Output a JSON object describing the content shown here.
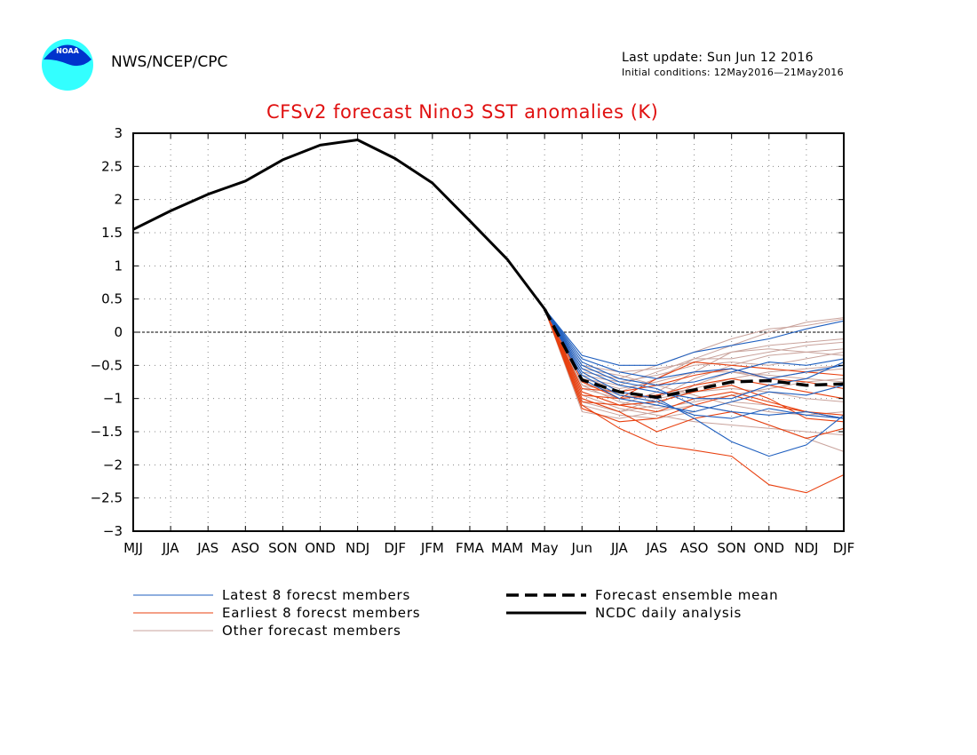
{
  "header": {
    "organization": "NWS/NCEP/CPC",
    "last_update": "Last update: Sun Jun 12 2016",
    "initial_conditions": "Initial conditions: 12May2016—21May2016",
    "logo_text": "NOAA"
  },
  "colors": {
    "title": "#e01010",
    "latest": "#1f5fbf",
    "earliest": "#e8400f",
    "other": "#c9a39c",
    "observed": "#000000",
    "mean": "#000000"
  },
  "chart_data": {
    "type": "line",
    "title": "CFSv2 forecast Nino3 SST anomalies (K)",
    "categories": [
      "MJJ",
      "JJA",
      "JAS",
      "ASO",
      "SON",
      "OND",
      "NDJ",
      "DJF",
      "JFM",
      "FMA",
      "MAM",
      "May",
      "Jun",
      "JJA",
      "JAS",
      "ASO",
      "SON",
      "OND",
      "NDJ",
      "DJF"
    ],
    "ylim": [
      -3,
      3
    ],
    "yticks": [
      "3",
      "2.5",
      "2",
      "1.5",
      "1",
      "0.5",
      "0",
      "−0.5",
      "−1",
      "−1.5",
      "−2",
      "−2.5",
      "−3"
    ],
    "grid": true,
    "zero_line": true,
    "observed": {
      "name": "NCDC daily analysis",
      "values": [
        1.55,
        1.83,
        2.08,
        2.28,
        2.6,
        2.82,
        2.9,
        2.62,
        2.25,
        1.68,
        1.1,
        0.35
      ]
    },
    "ensemble_mean": {
      "name": "Forecast ensemble mean",
      "start_index": 11,
      "values": [
        0.35,
        -0.72,
        -0.9,
        -0.98,
        -0.87,
        -0.75,
        -0.73,
        -0.8,
        -0.78
      ]
    },
    "latest_members": {
      "name": "Latest 8 forecst members",
      "start_index": 11,
      "series": [
        [
          0.35,
          -0.35,
          -0.5,
          -0.5,
          -0.3,
          -0.2,
          -0.1,
          0.05,
          0.17
        ],
        [
          0.35,
          -0.45,
          -0.7,
          -0.8,
          -0.75,
          -0.6,
          -0.45,
          -0.5,
          -0.4
        ],
        [
          0.35,
          -0.55,
          -0.8,
          -0.9,
          -1.0,
          -1.0,
          -0.8,
          -0.7,
          -0.45
        ],
        [
          0.35,
          -0.6,
          -0.9,
          -1.0,
          -1.3,
          -1.65,
          -1.87,
          -1.7,
          -1.25
        ],
        [
          0.35,
          -0.7,
          -1.0,
          -1.1,
          -1.2,
          -1.05,
          -0.9,
          -0.95,
          -0.8
        ],
        [
          0.35,
          -0.5,
          -0.75,
          -0.85,
          -1.1,
          -1.2,
          -1.25,
          -1.2,
          -1.3
        ],
        [
          0.35,
          -0.65,
          -0.95,
          -1.05,
          -1.25,
          -1.3,
          -1.15,
          -1.25,
          -1.3
        ],
        [
          0.35,
          -0.4,
          -0.6,
          -0.7,
          -0.6,
          -0.55,
          -0.7,
          -0.6,
          -0.5
        ]
      ]
    },
    "earliest_members": {
      "name": "Earliest 8 forecst members",
      "start_index": 11,
      "series": [
        [
          0.35,
          -1.1,
          -1.45,
          -1.7,
          -1.78,
          -1.87,
          -2.3,
          -2.42,
          -2.15
        ],
        [
          0.35,
          -1.0,
          -1.2,
          -1.5,
          -1.3,
          -1.2,
          -1.4,
          -1.6,
          -1.45
        ],
        [
          0.35,
          -0.9,
          -1.1,
          -1.2,
          -1.0,
          -0.9,
          -1.05,
          -1.2,
          -1.3
        ],
        [
          0.35,
          -0.75,
          -1.0,
          -0.95,
          -0.8,
          -0.7,
          -0.8,
          -0.9,
          -1.0
        ],
        [
          0.35,
          -1.05,
          -1.1,
          -1.05,
          -0.9,
          -0.8,
          -1.0,
          -1.3,
          -1.35
        ],
        [
          0.35,
          -0.85,
          -0.9,
          -0.8,
          -0.65,
          -0.55,
          -0.7,
          -0.75,
          -0.85
        ],
        [
          0.35,
          -1.15,
          -1.35,
          -1.3,
          -1.1,
          -0.95,
          -1.1,
          -1.2,
          -1.25
        ],
        [
          0.35,
          -0.95,
          -1.0,
          -0.7,
          -0.45,
          -0.5,
          -0.55,
          -0.6,
          -0.65
        ]
      ]
    },
    "other_members": {
      "name": "Other forecast members",
      "start_index": 11,
      "series": [
        [
          0.35,
          -0.6,
          -0.7,
          -0.5,
          -0.3,
          -0.1,
          0.05,
          0.1,
          0.2
        ],
        [
          0.35,
          -0.8,
          -0.9,
          -0.7,
          -0.4,
          -0.2,
          0.0,
          0.15,
          0.22
        ],
        [
          0.35,
          -0.9,
          -1.1,
          -0.9,
          -0.6,
          -0.3,
          -0.2,
          -0.15,
          -0.1
        ],
        [
          0.35,
          -1.2,
          -1.3,
          -1.2,
          -1.1,
          -1.2,
          -1.4,
          -1.6,
          -1.8
        ],
        [
          0.35,
          -0.7,
          -0.8,
          -0.6,
          -0.4,
          -0.4,
          -0.3,
          -0.2,
          -0.15
        ],
        [
          0.35,
          -1.0,
          -1.2,
          -1.1,
          -0.8,
          -0.6,
          -0.7,
          -0.6,
          -0.55
        ],
        [
          0.35,
          -0.5,
          -0.6,
          -0.55,
          -0.45,
          -0.3,
          -0.25,
          -0.3,
          -0.35
        ],
        [
          0.35,
          -1.1,
          -1.25,
          -1.3,
          -1.2,
          -1.05,
          -1.1,
          -1.2,
          -1.3
        ],
        [
          0.35,
          -0.85,
          -1.0,
          -0.95,
          -0.85,
          -0.7,
          -0.6,
          -0.55,
          -0.5
        ],
        [
          0.35,
          -0.75,
          -0.95,
          -1.0,
          -0.9,
          -0.85,
          -0.9,
          -1.0,
          -1.05
        ],
        [
          0.35,
          -0.95,
          -1.15,
          -1.25,
          -1.35,
          -1.4,
          -1.45,
          -1.5,
          -1.55
        ],
        [
          0.35,
          -0.65,
          -0.75,
          -0.65,
          -0.5,
          -0.45,
          -0.5,
          -0.4,
          -0.3
        ],
        [
          0.35,
          -1.05,
          -1.2,
          -1.0,
          -0.7,
          -0.5,
          -0.35,
          -0.3,
          -0.25
        ],
        [
          0.35,
          -0.55,
          -0.65,
          -0.8,
          -0.95,
          -1.1,
          -1.2,
          -1.25,
          -1.2
        ],
        [
          0.35,
          -0.8,
          -1.05,
          -1.15,
          -1.05,
          -0.95,
          -0.85,
          -0.75,
          -0.7
        ],
        [
          0.35,
          -0.7,
          -0.85,
          -0.75,
          -0.6,
          -0.6,
          -0.65,
          -0.7,
          -0.75
        ]
      ]
    },
    "legend": {
      "placement": "bottom",
      "entries": [
        {
          "label": "Latest 8 forecst members",
          "style": "latest"
        },
        {
          "label": "Earliest 8 forecst members",
          "style": "earliest"
        },
        {
          "label": "Other forecast members",
          "style": "other"
        },
        {
          "label": "Forecast ensemble mean",
          "style": "mean"
        },
        {
          "label": "NCDC daily analysis",
          "style": "observed"
        }
      ]
    }
  }
}
